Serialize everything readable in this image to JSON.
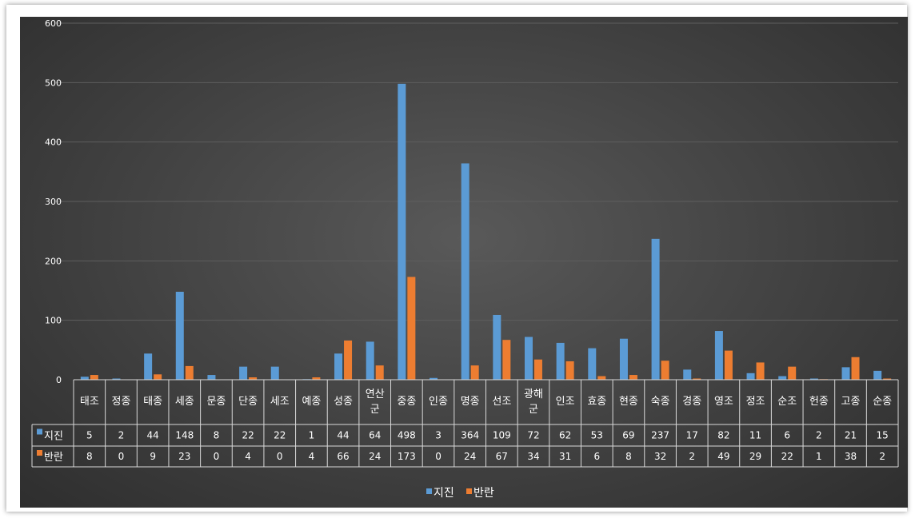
{
  "chart_data": {
    "type": "bar",
    "categories": [
      [
        "태조"
      ],
      [
        "정종"
      ],
      [
        "태종"
      ],
      [
        "세종"
      ],
      [
        "문종"
      ],
      [
        "단종"
      ],
      [
        "세조"
      ],
      [
        "예종"
      ],
      [
        "성종"
      ],
      [
        "연산",
        "군"
      ],
      [
        "중종"
      ],
      [
        "인종"
      ],
      [
        "명종"
      ],
      [
        "선조"
      ],
      [
        "광해",
        "군"
      ],
      [
        "인조"
      ],
      [
        "효종"
      ],
      [
        "현종"
      ],
      [
        "숙종"
      ],
      [
        "경종"
      ],
      [
        "영조"
      ],
      [
        "정조"
      ],
      [
        "순조"
      ],
      [
        "헌종"
      ],
      [
        "고종"
      ],
      [
        "순종"
      ]
    ],
    "series": [
      {
        "name": "지진",
        "color": "#5b9bd5",
        "values": [
          5,
          2,
          44,
          148,
          8,
          22,
          22,
          1,
          44,
          64,
          498,
          3,
          364,
          109,
          72,
          62,
          53,
          69,
          237,
          17,
          82,
          11,
          6,
          2,
          21,
          15
        ]
      },
      {
        "name": "반란",
        "color": "#ed7d31",
        "values": [
          8,
          0,
          9,
          23,
          0,
          4,
          0,
          4,
          66,
          24,
          173,
          0,
          24,
          67,
          34,
          31,
          6,
          8,
          32,
          2,
          49,
          29,
          22,
          1,
          38,
          2
        ]
      }
    ],
    "ylim": [
      0,
      600
    ],
    "yticks": [
      0,
      100,
      200,
      300,
      400,
      500,
      600
    ],
    "grid": true,
    "data_table": true,
    "legend": "bottom"
  }
}
